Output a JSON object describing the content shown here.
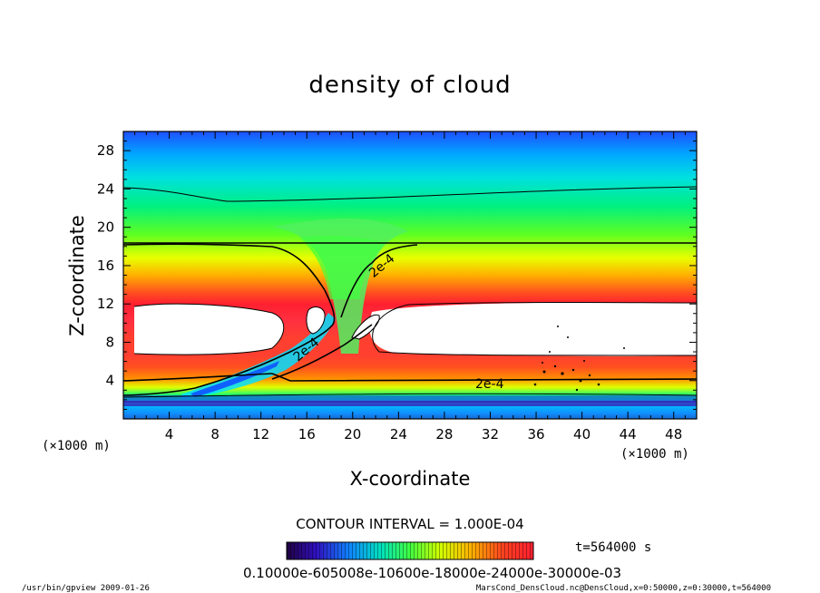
{
  "chart_data": {
    "type": "heatmap",
    "title": "density of cloud",
    "xlabel": "X-coordinate",
    "ylabel": "Z-coordinate",
    "x_unit": "(×1000 m)",
    "y_unit": "(×1000 m)",
    "xlim": [
      0,
      50
    ],
    "ylim": [
      0,
      30
    ],
    "x_ticks": [
      4,
      8,
      12,
      16,
      20,
      24,
      28,
      32,
      36,
      40,
      44,
      48
    ],
    "y_ticks": [
      4,
      8,
      12,
      16,
      20,
      24,
      28
    ],
    "contour_interval": "CONTOUR INTERVAL = 1.000E-04",
    "contour_labels": [
      "2e-4",
      "2e-4",
      "2e-4"
    ],
    "time_label": "t=564000 s",
    "colorbar_labels": "0.10000e-605008e-10600e-18000e-24000e-30000e-03",
    "colormap": [
      "#3a0aa0",
      "#2060ff",
      "#00c8ff",
      "#00ff80",
      "#b0ff00",
      "#ffe000",
      "#ff8000",
      "#ff2000",
      "#ffffff"
    ]
  },
  "footer": {
    "left": "/usr/bin/gpview  2009-01-26",
    "right": "MarsCond_DensCloud.nc@DensCloud,x=0:50000,z=0:30000,t=564000"
  }
}
